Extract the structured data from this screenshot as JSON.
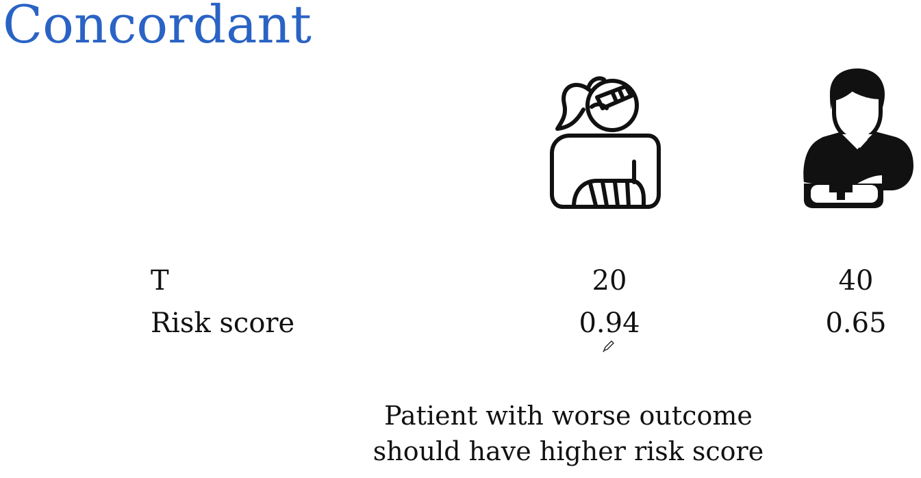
{
  "slide": {
    "title": "Concordant",
    "title_color": "#2a63c4",
    "icons": [
      "injured-woman-arm-sling-icon",
      "injured-man-arm-sling-icon"
    ],
    "rows": [
      {
        "label": "T",
        "values": [
          "20",
          "40"
        ]
      },
      {
        "label": "Risk score",
        "values": [
          "0.94",
          "0.65"
        ]
      }
    ],
    "caption": {
      "line1": "Patient with worse outcome",
      "line2": "should have higher risk score"
    },
    "pointer": "pencil-cursor-icon"
  }
}
